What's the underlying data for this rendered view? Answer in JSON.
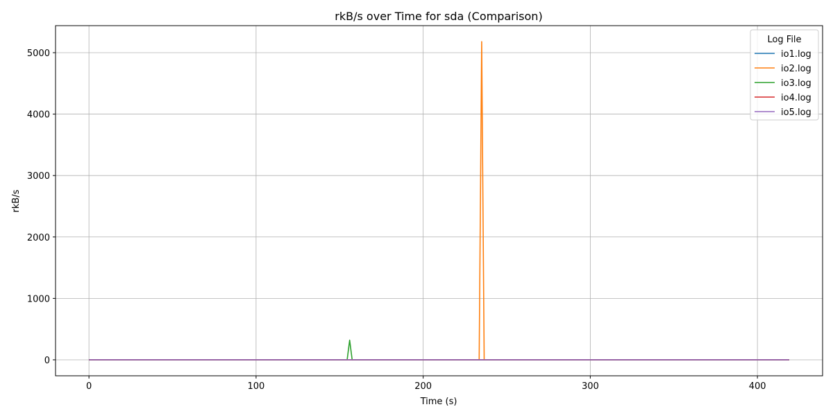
{
  "chart_data": {
    "type": "line",
    "title": "rkB/s over Time for sda (Comparison)",
    "xlabel": "Time (s)",
    "ylabel": "rkB/s",
    "xlim": [
      -20,
      439
    ],
    "ylim": [
      -260,
      5440
    ],
    "xticks": [
      0,
      100,
      200,
      300,
      400
    ],
    "yticks": [
      0,
      1000,
      2000,
      3000,
      4000,
      5000
    ],
    "grid": true,
    "legend": {
      "title": "Log File",
      "placement": "top-right"
    },
    "series": [
      {
        "name": "io1.log",
        "color": "#1f77b4",
        "x": [
          0,
          419
        ],
        "y": [
          0,
          0
        ]
      },
      {
        "name": "io2.log",
        "color": "#ff7f0e",
        "x": [
          0,
          233.5,
          235,
          236.5,
          419
        ],
        "y": [
          0,
          0,
          5180,
          0,
          0
        ]
      },
      {
        "name": "io3.log",
        "color": "#2ca02c",
        "x": [
          0,
          154.5,
          156,
          157.5,
          419
        ],
        "y": [
          0,
          0,
          320,
          0,
          0
        ]
      },
      {
        "name": "io4.log",
        "color": "#d62728",
        "x": [
          0,
          419
        ],
        "y": [
          0,
          0
        ]
      },
      {
        "name": "io5.log",
        "color": "#9467bd",
        "x": [
          0,
          419
        ],
        "y": [
          0,
          0
        ]
      }
    ]
  }
}
